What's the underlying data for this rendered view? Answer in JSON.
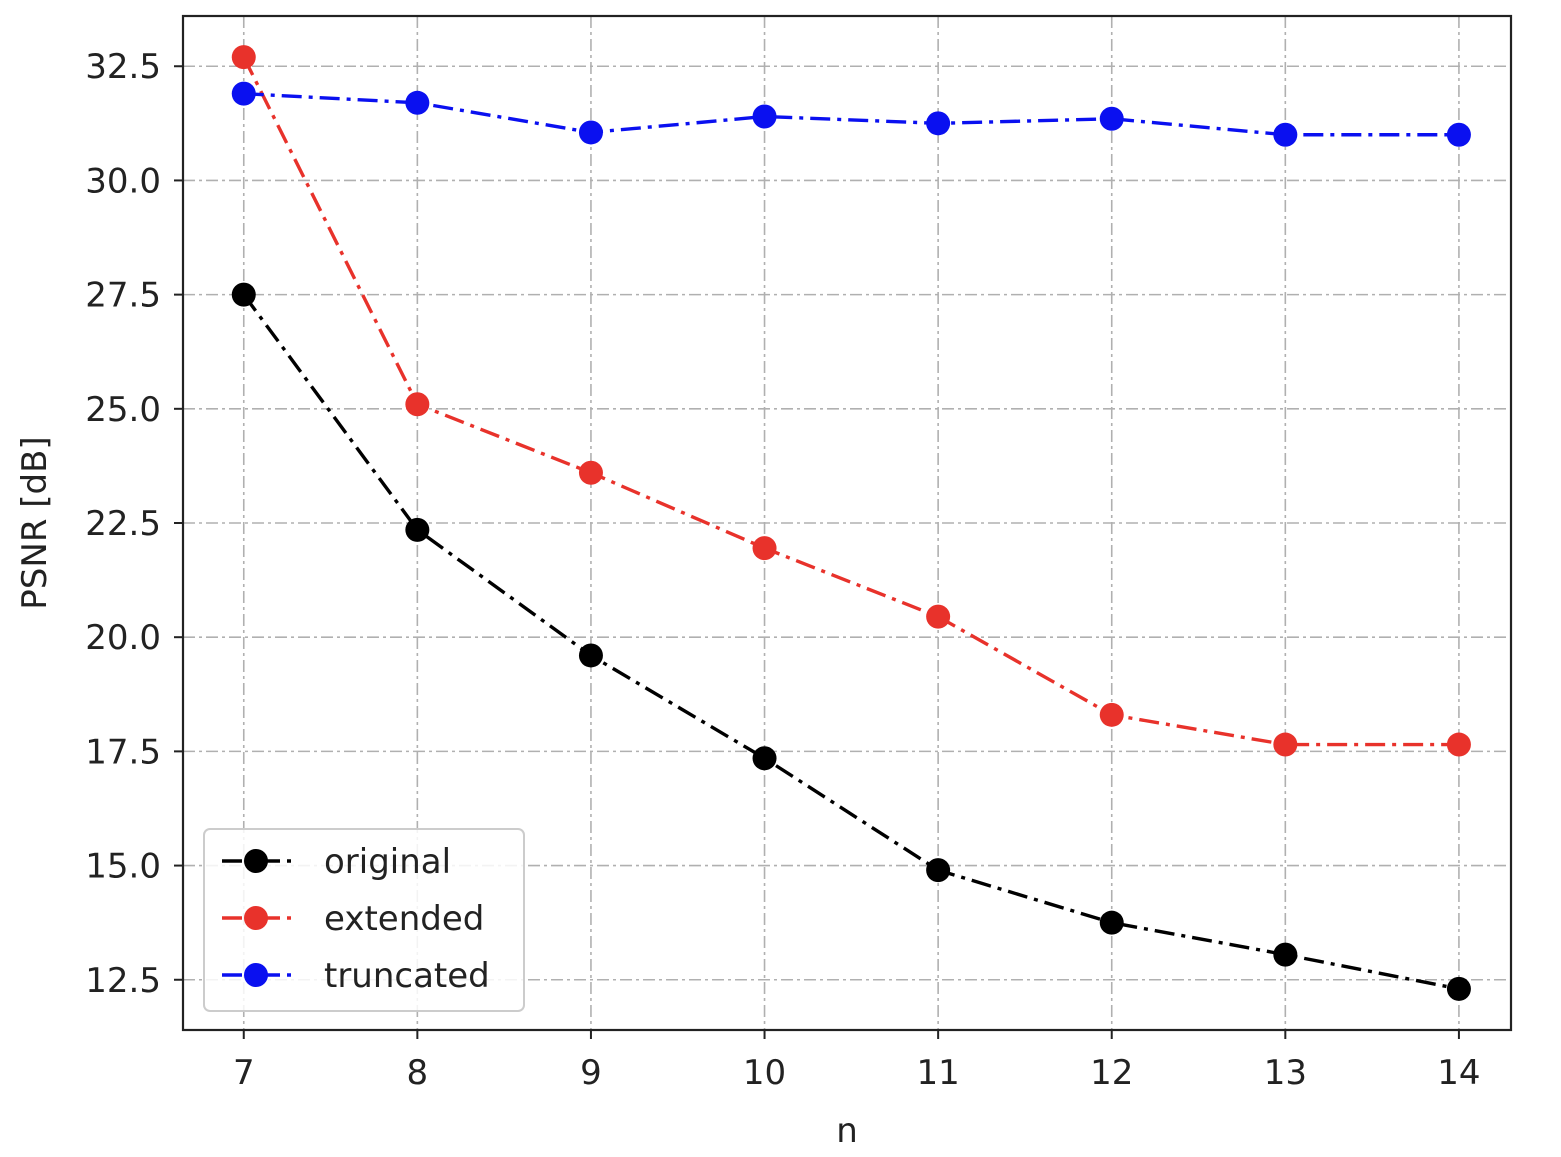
{
  "chart_data": {
    "type": "line",
    "title": "",
    "xlabel": "n",
    "ylabel": "PSNR [dB]",
    "x": [
      7,
      8,
      9,
      10,
      11,
      12,
      13,
      14
    ],
    "xlim": [
      6.65,
      14.3
    ],
    "ylim": [
      11.4,
      33.6
    ],
    "xticks": [
      "7",
      "8",
      "9",
      "10",
      "11",
      "12",
      "13",
      "14"
    ],
    "yticks": [
      12.5,
      15.0,
      17.5,
      20.0,
      22.5,
      25.0,
      27.5,
      30.0,
      32.5
    ],
    "ytick_labels": [
      "12.5",
      "15.0",
      "17.5",
      "20.0",
      "22.5",
      "25.0",
      "27.5",
      "30.0",
      "32.5"
    ],
    "grid": true,
    "legend_position": "lower-left",
    "series": [
      {
        "name": "original",
        "color": "#000000",
        "marker": "circle",
        "linestyle": "dash-dot",
        "values": [
          27.5,
          22.35,
          19.6,
          17.35,
          14.9,
          13.75,
          13.05,
          12.3
        ]
      },
      {
        "name": "extended",
        "color": "#e8322b",
        "marker": "circle",
        "linestyle": "dash-dot",
        "values": [
          32.7,
          25.1,
          23.6,
          21.95,
          20.45,
          18.3,
          17.65,
          17.65
        ]
      },
      {
        "name": "truncated",
        "color": "#0a10f0",
        "marker": "circle",
        "linestyle": "dash-dot",
        "values": [
          31.9,
          31.7,
          31.05,
          31.4,
          31.25,
          31.35,
          31.0,
          31.0
        ]
      }
    ]
  }
}
